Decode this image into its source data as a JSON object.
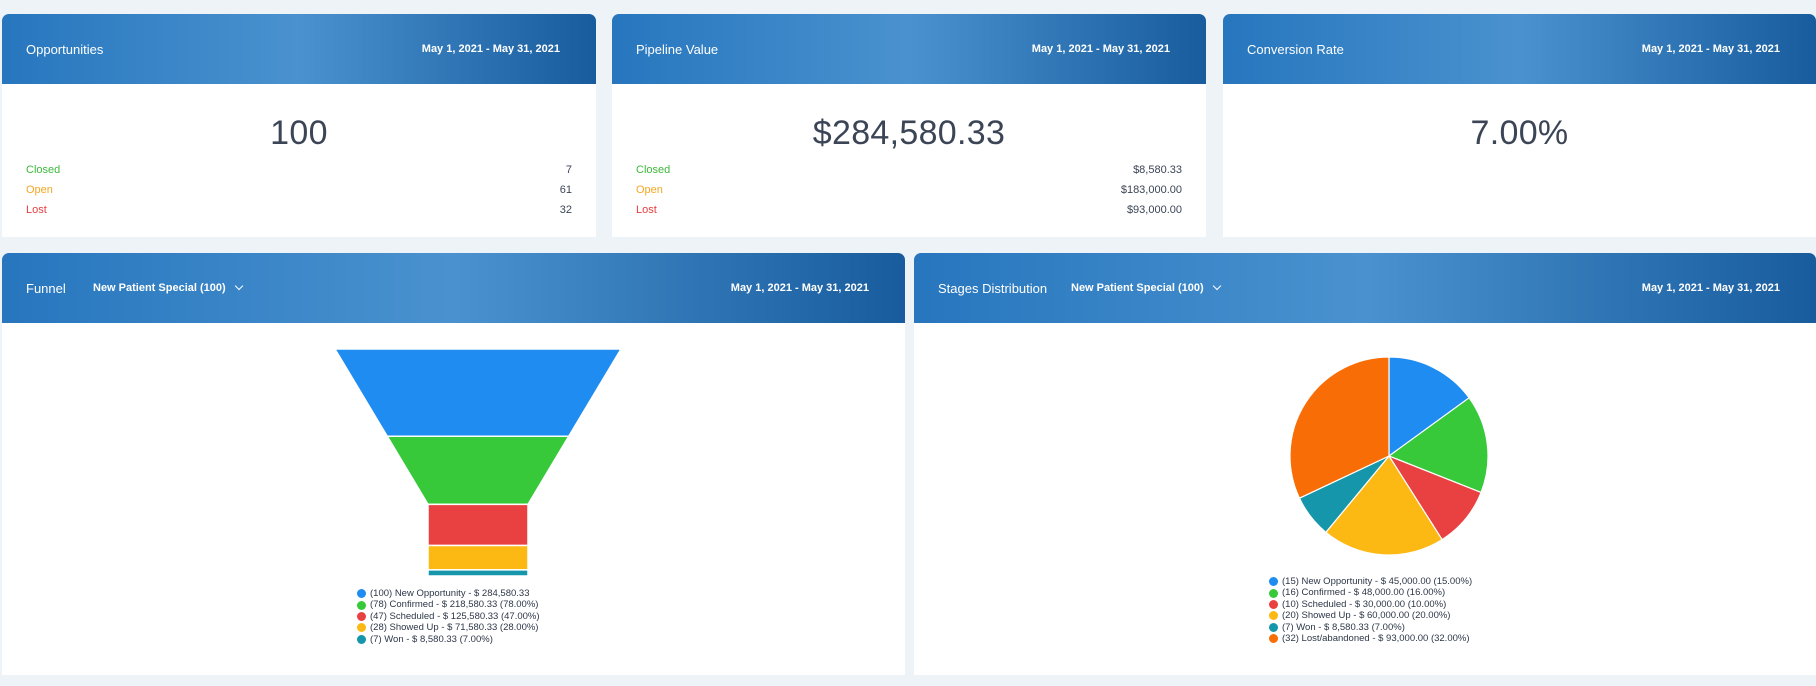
{
  "colors": {
    "blue": "#1e8cf0",
    "green": "#38c93a",
    "red": "#e94141",
    "yellow": "#fdb913",
    "teal": "#1696aa",
    "orange": "#f86d06"
  },
  "opportunities": {
    "title": "Opportunities",
    "date_range": "May 1, 2021 - May 31, 2021",
    "total": "100",
    "rows": [
      {
        "label": "Closed",
        "value": "7"
      },
      {
        "label": "Open",
        "value": "61"
      },
      {
        "label": "Lost",
        "value": "32"
      }
    ]
  },
  "pipeline": {
    "title": "Pipeline Value",
    "date_range": "May 1, 2021 - May 31, 2021",
    "total": "$284,580.33",
    "rows": [
      {
        "label": "Closed",
        "value": "$8,580.33"
      },
      {
        "label": "Open",
        "value": "$183,000.00"
      },
      {
        "label": "Lost",
        "value": "$93,000.00"
      }
    ]
  },
  "conversion": {
    "title": "Conversion Rate",
    "date_range": "May 1, 2021 - May 31, 2021",
    "value": "7.00%"
  },
  "funnel": {
    "title": "Funnel",
    "pipeline_select": "New Patient Special (100)",
    "date_range": "May 1, 2021 - May 31, 2021",
    "legend": [
      "(100) New Opportunity - $ 284,580.33",
      "(78) Confirmed - $ 218,580.33 (78.00%)",
      "(47) Scheduled - $ 125,580.33 (47.00%)",
      "(28) Showed Up - $ 71,580.33 (28.00%)",
      "(7) Won - $ 8,580.33 (7.00%)"
    ]
  },
  "stages": {
    "title": "Stages Distribution",
    "pipeline_select": "New Patient Special (100)",
    "date_range": "May 1, 2021 - May 31, 2021",
    "legend": [
      "(15) New Opportunity - $ 45,000.00 (15.00%)",
      "(16) Confirmed - $ 48,000.00 (16.00%)",
      "(10) Scheduled - $ 30,000.00 (10.00%)",
      "(20) Showed Up - $ 60,000.00 (20.00%)",
      "(7) Won - $ 8,580.33 (7.00%)",
      "(32) Lost/abandoned - $ 93,000.00 (32.00%)"
    ]
  },
  "chart_data": [
    {
      "type": "funnel",
      "categories": [
        "New Opportunity",
        "Confirmed",
        "Scheduled",
        "Showed Up",
        "Won"
      ],
      "values": [
        100,
        78,
        47,
        28,
        7
      ]
    },
    {
      "type": "pie",
      "categories": [
        "New Opportunity",
        "Confirmed",
        "Scheduled",
        "Showed Up",
        "Won",
        "Lost/abandoned"
      ],
      "values": [
        15,
        16,
        10,
        20,
        7,
        32
      ]
    }
  ]
}
